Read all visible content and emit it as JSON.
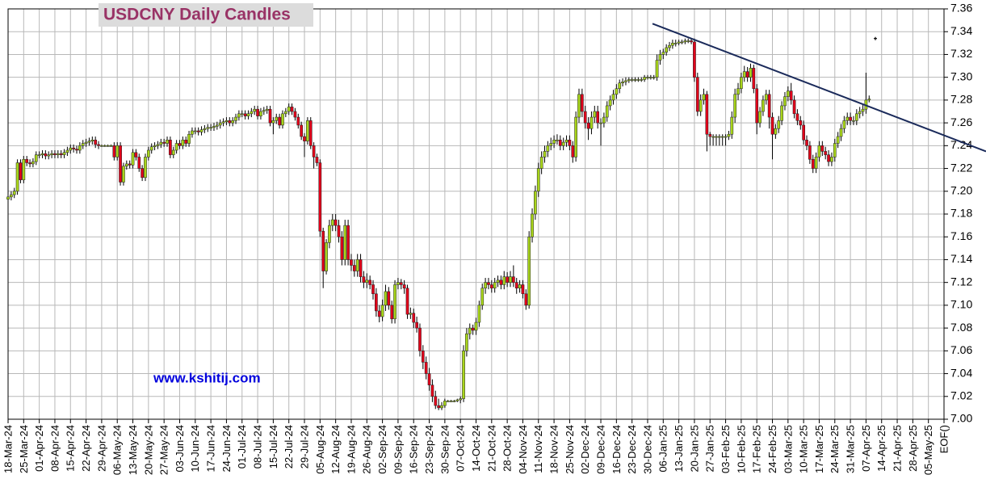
{
  "chart_data": {
    "type": "candlestick",
    "title": "USDCNY Daily Candles",
    "watermark": "www.kshitij.com",
    "categories": [
      "18-Mar-24",
      "25-Mar-24",
      "01-Apr-24",
      "08-Apr-24",
      "15-Apr-24",
      "22-Apr-24",
      "29-Apr-24",
      "06-May-24",
      "13-May-24",
      "20-May-24",
      "27-May-24",
      "03-Jun-24",
      "10-Jun-24",
      "17-Jun-24",
      "24-Jun-24",
      "01-Jul-24",
      "08-Jul-24",
      "15-Jul-24",
      "22-Jul-24",
      "29-Jul-24",
      "05-Aug-24",
      "12-Aug-24",
      "19-Aug-24",
      "26-Aug-24",
      "02-Sep-24",
      "09-Sep-24",
      "16-Sep-24",
      "23-Sep-24",
      "30-Sep-24",
      "07-Oct-24",
      "14-Oct-24",
      "21-Oct-24",
      "28-Oct-24",
      "04-Nov-24",
      "11-Nov-24",
      "18-Nov-24",
      "25-Nov-24",
      "02-Dec-24",
      "09-Dec-24",
      "16-Dec-24",
      "23-Dec-24",
      "30-Dec-24",
      "06-Jan-25",
      "13-Jan-25",
      "20-Jan-25",
      "27-Jan-25",
      "03-Feb-25",
      "10-Feb-25",
      "17-Feb-25",
      "24-Feb-25",
      "03-Mar-25",
      "10-Mar-25",
      "17-Mar-25",
      "24-Mar-25",
      "31-Mar-25",
      "07-Apr-25",
      "14-Apr-25",
      "21-Apr-25",
      "28-Apr-25",
      "05-May-25",
      "EOF()"
    ],
    "open": [
      7.193,
      7.195,
      7.197,
      7.2,
      7.225,
      7.21,
      7.228,
      7.225,
      7.224,
      7.226,
      7.232,
      7.232,
      7.233,
      7.231,
      7.232,
      7.233,
      7.232,
      7.233,
      7.232,
      7.234,
      7.236,
      7.238,
      7.237,
      7.236,
      7.24,
      7.242,
      7.243,
      7.244,
      7.245,
      7.241,
      7.24,
      7.24,
      7.24,
      7.24,
      7.24,
      7.23,
      7.24,
      7.208,
      7.222,
      7.224,
      7.223,
      7.234,
      7.23,
      7.22,
      7.212,
      7.23,
      7.236,
      7.239,
      7.24,
      7.241,
      7.243,
      7.242,
      7.245,
      7.232,
      7.236,
      7.242,
      7.24,
      7.245,
      7.242,
      7.25,
      7.253,
      7.253,
      7.252,
      7.254,
      7.255,
      7.256,
      7.256,
      7.257,
      7.258,
      7.26,
      7.261,
      7.262,
      7.26,
      7.262,
      7.265,
      7.268,
      7.268,
      7.266,
      7.268,
      7.27,
      7.272,
      7.266,
      7.27,
      7.271,
      7.272,
      7.26,
      7.262,
      7.265,
      7.258,
      7.268,
      7.27,
      7.274,
      7.27,
      7.265,
      7.258,
      7.248,
      7.244,
      7.262,
      7.24,
      7.23,
      7.225,
      7.165,
      7.13,
      7.155,
      7.17,
      7.175,
      7.17,
      7.16,
      7.14,
      7.17,
      7.14,
      7.135,
      7.13,
      7.14,
      7.125,
      7.12,
      7.122,
      7.118,
      7.11,
      7.095,
      7.09,
      7.1,
      7.112,
      7.1,
      7.088,
      7.118,
      7.12,
      7.118,
      7.115,
      7.092,
      7.093,
      7.085,
      7.08,
      7.06,
      7.05,
      7.04,
      7.03,
      7.02,
      7.012,
      7.01,
      7.012,
      7.016,
      7.016,
      7.016,
      7.016,
      7.017,
      7.018,
      7.06,
      7.075,
      7.08,
      7.078,
      7.085,
      7.1,
      7.115,
      7.12,
      7.118,
      7.115,
      7.12,
      7.122,
      7.118,
      7.125,
      7.12,
      7.125,
      7.12,
      7.115,
      7.118,
      7.11,
      7.1,
      7.16,
      7.18,
      7.2,
      7.22,
      7.23,
      7.235,
      7.24,
      7.242,
      7.245,
      7.245,
      7.24,
      7.243,
      7.245,
      7.24,
      7.23,
      7.265,
      7.285,
      7.27,
      7.26,
      7.255,
      7.265,
      7.27,
      7.26,
      7.26,
      7.265,
      7.275,
      7.28,
      7.285,
      7.29,
      7.295,
      7.296,
      7.297,
      7.298,
      7.298,
      7.298,
      7.298,
      7.298,
      7.3,
      7.3,
      7.3,
      7.3,
      7.315,
      7.32,
      7.322,
      7.326,
      7.328,
      7.33,
      7.33,
      7.331,
      7.331,
      7.332,
      7.332,
      7.331,
      7.3,
      7.27,
      7.28,
      7.285,
      7.25,
      7.248,
      7.248,
      7.248,
      7.248,
      7.248,
      7.248,
      7.25,
      7.265,
      7.285,
      7.29,
      7.3,
      7.305,
      7.3,
      7.308,
      7.29,
      7.26,
      7.27,
      7.28,
      7.285,
      7.265,
      7.25,
      7.255,
      7.262,
      7.275,
      7.283,
      7.288,
      7.28,
      7.268,
      7.262,
      7.258,
      7.245,
      7.24,
      7.228,
      7.22,
      7.23,
      7.24,
      7.235,
      7.232,
      7.226,
      7.23,
      7.242,
      7.248,
      7.255,
      7.262,
      7.265,
      7.262,
      7.262,
      7.268,
      7.27,
      7.272,
      7.28
    ],
    "high": [
      7.198,
      7.2,
      7.203,
      7.228,
      7.228,
      7.231,
      7.231,
      7.228,
      7.229,
      7.235,
      7.235,
      7.236,
      7.236,
      7.235,
      7.236,
      7.236,
      7.236,
      7.236,
      7.237,
      7.239,
      7.241,
      7.241,
      7.24,
      7.243,
      7.245,
      7.246,
      7.247,
      7.248,
      7.248,
      7.244,
      7.241,
      7.241,
      7.241,
      7.241,
      7.243,
      7.243,
      7.243,
      7.225,
      7.227,
      7.227,
      7.237,
      7.237,
      7.233,
      7.223,
      7.233,
      7.239,
      7.242,
      7.243,
      7.244,
      7.246,
      7.246,
      7.248,
      7.248,
      7.239,
      7.245,
      7.245,
      7.248,
      7.248,
      7.253,
      7.256,
      7.256,
      7.256,
      7.257,
      7.258,
      7.259,
      7.259,
      7.26,
      7.261,
      7.263,
      7.264,
      7.265,
      7.265,
      7.265,
      7.268,
      7.271,
      7.271,
      7.271,
      7.271,
      7.273,
      7.275,
      7.275,
      7.273,
      7.274,
      7.275,
      7.275,
      7.265,
      7.268,
      7.268,
      7.271,
      7.273,
      7.277,
      7.277,
      7.273,
      7.268,
      7.261,
      7.251,
      7.265,
      7.265,
      7.243,
      7.233,
      7.228,
      7.168,
      7.158,
      7.175,
      7.18,
      7.18,
      7.175,
      7.165,
      7.175,
      7.175,
      7.145,
      7.14,
      7.145,
      7.145,
      7.13,
      7.128,
      7.126,
      7.122,
      7.115,
      7.1,
      7.105,
      7.118,
      7.116,
      7.104,
      7.122,
      7.124,
      7.123,
      7.122,
      7.118,
      7.098,
      7.097,
      7.09,
      7.084,
      7.065,
      7.055,
      7.045,
      7.035,
      7.025,
      7.018,
      7.015,
      7.018,
      7.017,
      7.017,
      7.017,
      7.018,
      7.02,
      7.065,
      7.08,
      7.084,
      7.083,
      7.089,
      7.104,
      7.119,
      7.124,
      7.124,
      7.122,
      7.124,
      7.126,
      7.126,
      7.13,
      7.129,
      7.13,
      7.135,
      7.124,
      7.122,
      7.122,
      7.114,
      7.165,
      7.185,
      7.205,
      7.225,
      7.235,
      7.24,
      7.244,
      7.247,
      7.249,
      7.25,
      7.249,
      7.247,
      7.249,
      7.249,
      7.244,
      7.27,
      7.29,
      7.29,
      7.275,
      7.265,
      7.27,
      7.275,
      7.275,
      7.264,
      7.269,
      7.279,
      7.284,
      7.289,
      7.294,
      7.298,
      7.299,
      7.3,
      7.3,
      7.3,
      7.3,
      7.3,
      7.3,
      7.302,
      7.302,
      7.302,
      7.302,
      7.32,
      7.324,
      7.325,
      7.329,
      7.331,
      7.333,
      7.333,
      7.333,
      7.333,
      7.334,
      7.334,
      7.334,
      7.334,
      7.304,
      7.285,
      7.29,
      7.288,
      7.252,
      7.25,
      7.25,
      7.25,
      7.25,
      7.25,
      7.253,
      7.27,
      7.29,
      7.295,
      7.304,
      7.31,
      7.309,
      7.312,
      7.311,
      7.294,
      7.274,
      7.284,
      7.289,
      7.289,
      7.269,
      7.259,
      7.266,
      7.279,
      7.287,
      7.292,
      7.295,
      7.284,
      7.272,
      7.266,
      7.262,
      7.249,
      7.244,
      7.232,
      7.234,
      7.244,
      7.244,
      7.239,
      7.236,
      7.234,
      7.246,
      7.252,
      7.259,
      7.266,
      7.269,
      7.269,
      7.266,
      7.272,
      7.274,
      7.276,
      7.304,
      7.284
    ],
    "low": [
      7.19,
      7.192,
      7.194,
      7.197,
      7.207,
      7.207,
      7.222,
      7.221,
      7.221,
      7.223,
      7.229,
      7.229,
      7.228,
      7.228,
      7.229,
      7.229,
      7.229,
      7.229,
      7.229,
      7.231,
      7.233,
      7.234,
      7.233,
      7.233,
      7.237,
      7.239,
      7.24,
      7.241,
      7.238,
      7.237,
      7.239,
      7.239,
      7.239,
      7.239,
      7.227,
      7.227,
      7.205,
      7.205,
      7.219,
      7.22,
      7.22,
      7.227,
      7.217,
      7.209,
      7.209,
      7.227,
      7.233,
      7.236,
      7.237,
      7.238,
      7.239,
      7.239,
      7.229,
      7.229,
      7.233,
      7.237,
      7.237,
      7.239,
      7.239,
      7.247,
      7.25,
      7.249,
      7.249,
      7.251,
      7.252,
      7.253,
      7.253,
      7.254,
      7.255,
      7.257,
      7.258,
      7.257,
      7.257,
      7.259,
      7.262,
      7.265,
      7.263,
      7.263,
      7.265,
      7.267,
      7.263,
      7.263,
      7.267,
      7.268,
      7.257,
      7.25,
      7.259,
      7.255,
      7.255,
      7.265,
      7.267,
      7.267,
      7.262,
      7.255,
      7.245,
      7.23,
      7.241,
      7.237,
      7.22,
      7.222,
      7.16,
      7.115,
      7.127,
      7.15,
      7.165,
      7.165,
      7.155,
      7.135,
      7.135,
      7.135,
      7.13,
      7.125,
      7.125,
      7.12,
      7.115,
      7.115,
      7.114,
      7.105,
      7.09,
      7.085,
      7.086,
      7.095,
      7.096,
      7.084,
      7.084,
      7.114,
      7.114,
      7.11,
      7.088,
      7.088,
      7.08,
      7.076,
      7.055,
      7.044,
      7.035,
      7.025,
      7.015,
      7.009,
      7.008,
      7.008,
      7.01,
      7.015,
      7.015,
      7.015,
      7.015,
      7.014,
      7.015,
      7.055,
      7.07,
      7.074,
      7.074,
      7.081,
      7.096,
      7.11,
      7.114,
      7.111,
      7.111,
      7.116,
      7.114,
      7.114,
      7.116,
      7.116,
      7.116,
      7.11,
      7.111,
      7.106,
      7.096,
      7.097,
      7.155,
      7.175,
      7.195,
      7.215,
      7.225,
      7.23,
      7.236,
      7.238,
      7.241,
      7.236,
      7.236,
      7.239,
      7.236,
      7.225,
      7.226,
      7.26,
      7.265,
      7.255,
      7.245,
      7.25,
      7.26,
      7.255,
      7.24,
      7.256,
      7.261,
      7.271,
      7.276,
      7.281,
      7.286,
      7.292,
      7.293,
      7.295,
      7.296,
      7.296,
      7.296,
      7.296,
      7.296,
      7.298,
      7.298,
      7.298,
      7.297,
      7.311,
      7.316,
      7.319,
      7.323,
      7.325,
      7.327,
      7.328,
      7.329,
      7.329,
      7.33,
      7.329,
      7.296,
      7.266,
      7.266,
      7.276,
      7.235,
      7.24,
      7.24,
      7.24,
      7.24,
      7.24,
      7.24,
      7.245,
      7.246,
      7.26,
      7.28,
      7.286,
      7.296,
      7.296,
      7.296,
      7.286,
      7.25,
      7.256,
      7.266,
      7.276,
      7.255,
      7.228,
      7.246,
      7.251,
      7.258,
      7.271,
      7.279,
      7.276,
      7.264,
      7.258,
      7.254,
      7.241,
      7.236,
      7.224,
      7.216,
      7.216,
      7.226,
      7.231,
      7.228,
      7.222,
      7.222,
      7.226,
      7.238,
      7.244,
      7.251,
      7.258,
      7.258,
      7.258,
      7.258,
      7.264,
      7.266,
      7.268,
      7.278
    ],
    "close": [
      7.195,
      7.197,
      7.2,
      7.225,
      7.21,
      7.228,
      7.225,
      7.224,
      7.226,
      7.232,
      7.232,
      7.233,
      7.231,
      7.232,
      7.233,
      7.232,
      7.233,
      7.232,
      7.234,
      7.236,
      7.238,
      7.237,
      7.236,
      7.24,
      7.242,
      7.243,
      7.244,
      7.245,
      7.241,
      7.24,
      7.24,
      7.24,
      7.24,
      7.24,
      7.23,
      7.24,
      7.208,
      7.222,
      7.224,
      7.223,
      7.234,
      7.23,
      7.22,
      7.212,
      7.23,
      7.236,
      7.239,
      7.24,
      7.241,
      7.243,
      7.242,
      7.245,
      7.232,
      7.236,
      7.242,
      7.24,
      7.245,
      7.242,
      7.25,
      7.253,
      7.253,
      7.252,
      7.254,
      7.255,
      7.256,
      7.256,
      7.257,
      7.258,
      7.26,
      7.261,
      7.262,
      7.26,
      7.262,
      7.265,
      7.268,
      7.268,
      7.266,
      7.268,
      7.27,
      7.272,
      7.266,
      7.27,
      7.271,
      7.272,
      7.26,
      7.262,
      7.265,
      7.258,
      7.268,
      7.27,
      7.274,
      7.27,
      7.265,
      7.258,
      7.248,
      7.244,
      7.262,
      7.24,
      7.23,
      7.225,
      7.165,
      7.13,
      7.155,
      7.17,
      7.175,
      7.17,
      7.16,
      7.14,
      7.17,
      7.14,
      7.135,
      7.13,
      7.14,
      7.125,
      7.12,
      7.122,
      7.118,
      7.11,
      7.095,
      7.09,
      7.1,
      7.112,
      7.1,
      7.088,
      7.118,
      7.12,
      7.118,
      7.115,
      7.092,
      7.093,
      7.085,
      7.08,
      7.06,
      7.05,
      7.04,
      7.03,
      7.02,
      7.012,
      7.01,
      7.012,
      7.016,
      7.016,
      7.016,
      7.016,
      7.017,
      7.018,
      7.06,
      7.075,
      7.08,
      7.078,
      7.085,
      7.1,
      7.115,
      7.12,
      7.118,
      7.115,
      7.12,
      7.122,
      7.118,
      7.125,
      7.12,
      7.125,
      7.12,
      7.115,
      7.118,
      7.11,
      7.1,
      7.16,
      7.18,
      7.2,
      7.22,
      7.23,
      7.235,
      7.24,
      7.242,
      7.245,
      7.245,
      7.24,
      7.243,
      7.245,
      7.24,
      7.23,
      7.265,
      7.285,
      7.27,
      7.26,
      7.255,
      7.265,
      7.27,
      7.26,
      7.26,
      7.265,
      7.275,
      7.28,
      7.285,
      7.29,
      7.295,
      7.296,
      7.297,
      7.298,
      7.298,
      7.298,
      7.298,
      7.298,
      7.3,
      7.3,
      7.3,
      7.3,
      7.315,
      7.32,
      7.322,
      7.326,
      7.328,
      7.33,
      7.33,
      7.331,
      7.331,
      7.332,
      7.332,
      7.331,
      7.3,
      7.27,
      7.28,
      7.285,
      7.25,
      7.248,
      7.248,
      7.248,
      7.248,
      7.248,
      7.248,
      7.25,
      7.265,
      7.285,
      7.29,
      7.3,
      7.305,
      7.3,
      7.308,
      7.29,
      7.26,
      7.27,
      7.28,
      7.285,
      7.265,
      7.25,
      7.255,
      7.262,
      7.275,
      7.283,
      7.288,
      7.28,
      7.268,
      7.262,
      7.258,
      7.245,
      7.24,
      7.228,
      7.22,
      7.23,
      7.24,
      7.235,
      7.232,
      7.226,
      7.23,
      7.242,
      7.248,
      7.255,
      7.262,
      7.265,
      7.262,
      7.262,
      7.268,
      7.27,
      7.272,
      7.28,
      7.281
    ],
    "ylim": [
      7.0,
      7.36
    ],
    "yticks": [
      {
        "value": 7.0,
        "label": "7.00"
      },
      {
        "value": 7.02,
        "label": "7.02"
      },
      {
        "value": 7.04,
        "label": "7.04"
      },
      {
        "value": 7.06,
        "label": "7.06"
      },
      {
        "value": 7.08,
        "label": "7.08"
      },
      {
        "value": 7.1,
        "label": "7.10"
      },
      {
        "value": 7.12,
        "label": "7.12"
      },
      {
        "value": 7.14,
        "label": "7.14"
      },
      {
        "value": 7.16,
        "label": "7.16"
      },
      {
        "value": 7.18,
        "label": "7.18"
      },
      {
        "value": 7.2,
        "label": "7.20"
      },
      {
        "value": 7.22,
        "label": "7.22"
      },
      {
        "value": 7.24,
        "label": "7.24"
      },
      {
        "value": 7.26,
        "label": "7.26"
      },
      {
        "value": 7.28,
        "label": "7.28"
      },
      {
        "value": 7.3,
        "label": "7.30"
      },
      {
        "value": 7.32,
        "label": "7.32"
      },
      {
        "value": 7.34,
        "label": "7.34"
      },
      {
        "value": 7.36,
        "label": "7.36"
      }
    ],
    "grid": true,
    "up_color": "#a8d51a",
    "down_color": "#e2001a",
    "trendline": {
      "start": 7.347,
      "end": 7.235,
      "color": "#1a2a5a"
    },
    "marker": 7.334
  }
}
